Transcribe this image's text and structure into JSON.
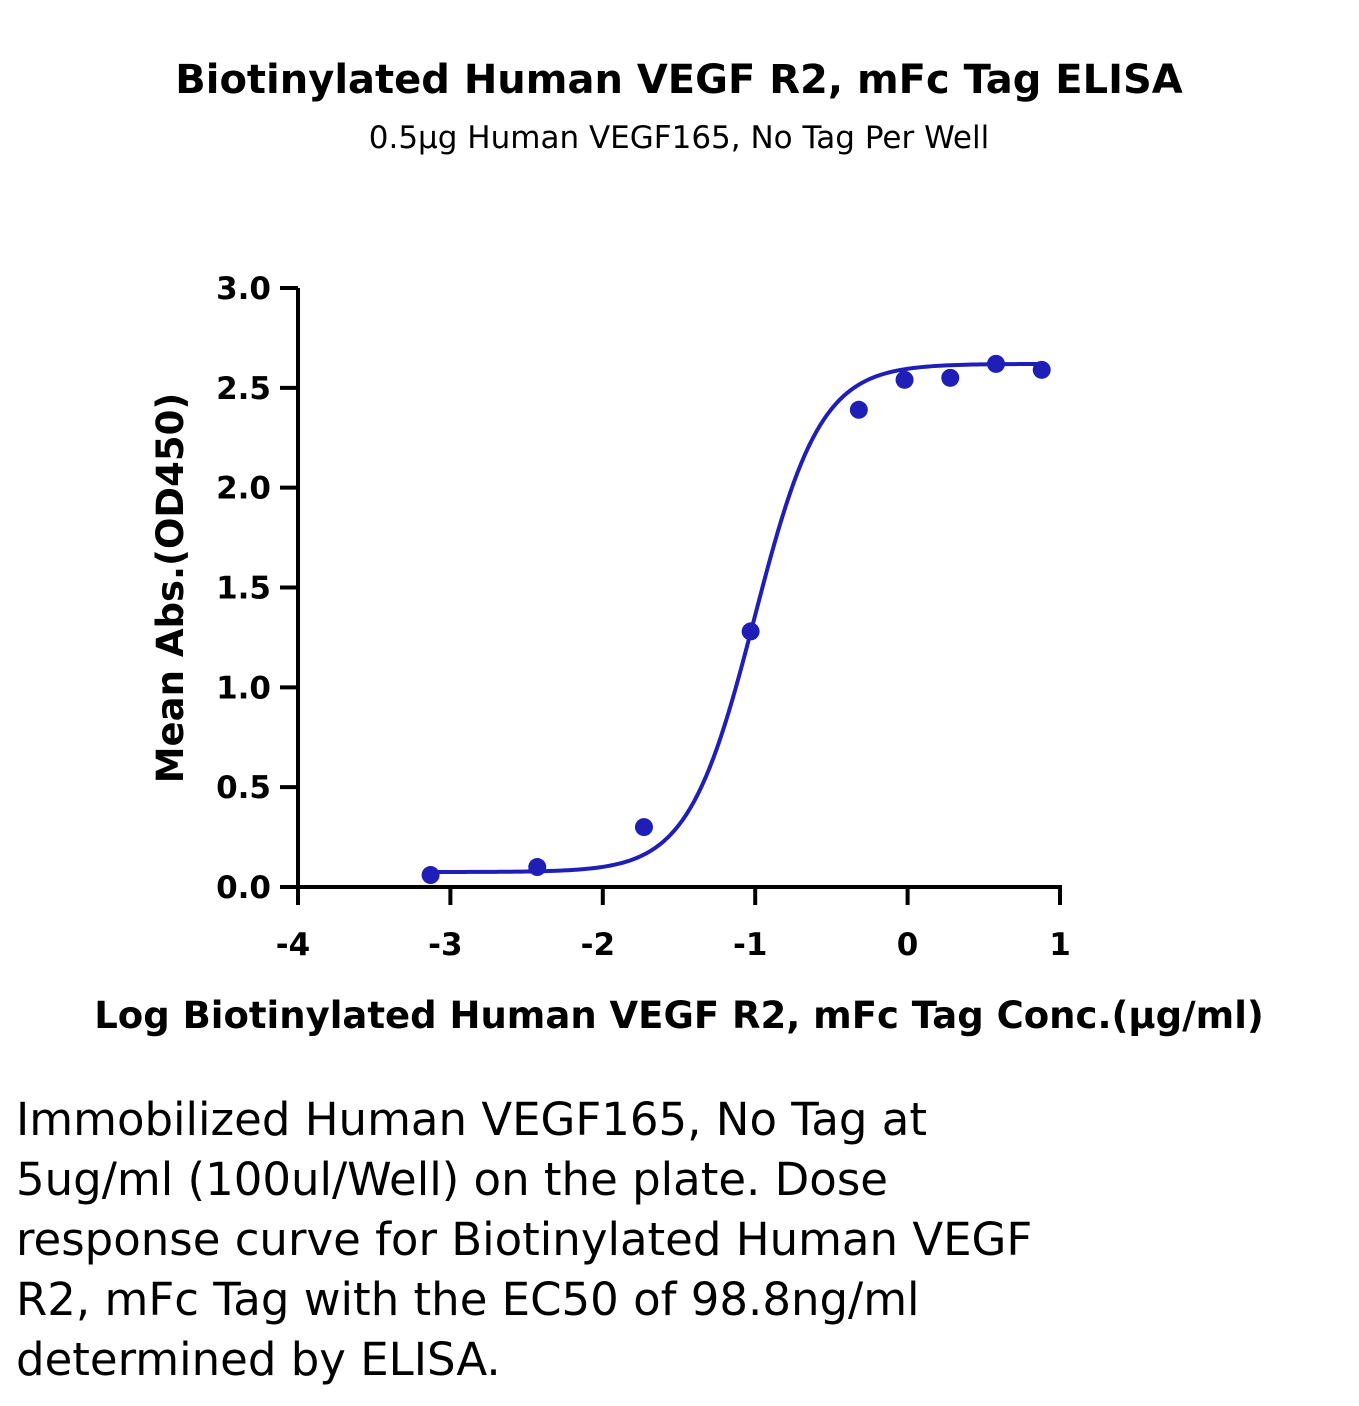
{
  "chart_data": {
    "type": "scatter",
    "title": "Biotinylated Human VEGF R2, mFc Tag ELISA",
    "subtitle": "0.5μg Human VEGF165, No Tag Per Well",
    "xlabel": "Log Biotinylated Human VEGF R2, mFc Tag Conc.(μg/ml)",
    "ylabel": "Mean Abs.(OD450)",
    "xlim": [
      -4,
      1
    ],
    "ylim": [
      0,
      3.0
    ],
    "x_ticks": [
      "-4",
      "-3",
      "-2",
      "-1",
      "0",
      "1"
    ],
    "y_ticks": [
      "0.0",
      "0.5",
      "1.0",
      "1.5",
      "2.0",
      "2.5",
      "3.0"
    ],
    "grid": false,
    "series": [
      {
        "color": "#1f1fb8",
        "points": [
          {
            "x": -3.13,
            "y": 0.06
          },
          {
            "x": -2.43,
            "y": 0.1
          },
          {
            "x": -1.73,
            "y": 0.3
          },
          {
            "x": -1.03,
            "y": 1.28
          },
          {
            "x": -0.32,
            "y": 2.39
          },
          {
            "x": -0.02,
            "y": 2.54
          },
          {
            "x": 0.28,
            "y": 2.55
          },
          {
            "x": 0.58,
            "y": 2.62
          },
          {
            "x": 0.88,
            "y": 2.59
          }
        ],
        "fit": {
          "model": "4PL",
          "bottom": 0.075,
          "top": 2.62,
          "log_ec50": -1.005,
          "hill": 2.0
        }
      }
    ]
  },
  "caption": "Immobilized Human VEGF165, No Tag at 5ug/ml (100ul/Well) on the plate. Dose response curve for Biotinylated Human VEGF R2, mFc Tag with the EC50 of 98.8ng/ml determined by ELISA."
}
